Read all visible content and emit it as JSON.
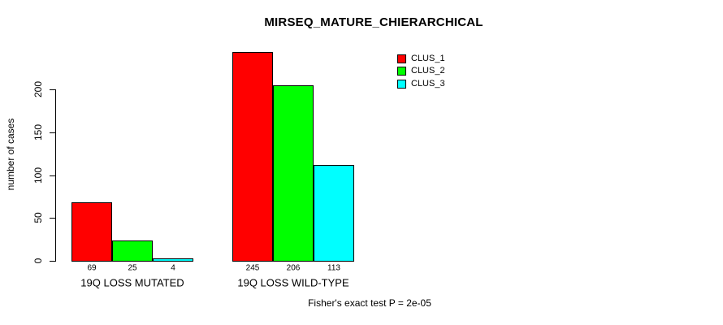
{
  "chart_data": {
    "type": "bar",
    "title": "MIRSEQ_MATURE_CHIERARCHICAL",
    "ylabel": "number of cases",
    "xlabel": "",
    "annotation": "Fisher's exact test P = 2e-05",
    "categories": [
      "19Q LOSS MUTATED",
      "19Q LOSS WILD-TYPE"
    ],
    "series": [
      {
        "name": "CLUS_1",
        "color": "#ff0000",
        "values": [
          69,
          245
        ]
      },
      {
        "name": "CLUS_2",
        "color": "#00ff00",
        "values": [
          25,
          206
        ]
      },
      {
        "name": "CLUS_3",
        "color": "#00ffff",
        "values": [
          4,
          113
        ]
      }
    ],
    "bar_value_labels_shown": true,
    "yticks": [
      0,
      50,
      100,
      150,
      200
    ],
    "ylim": [
      0,
      245
    ],
    "grid": false,
    "legend_position": "top-right",
    "bar_border_color": "#000000",
    "text_color": "#000000",
    "background_color": "#ffffff"
  }
}
